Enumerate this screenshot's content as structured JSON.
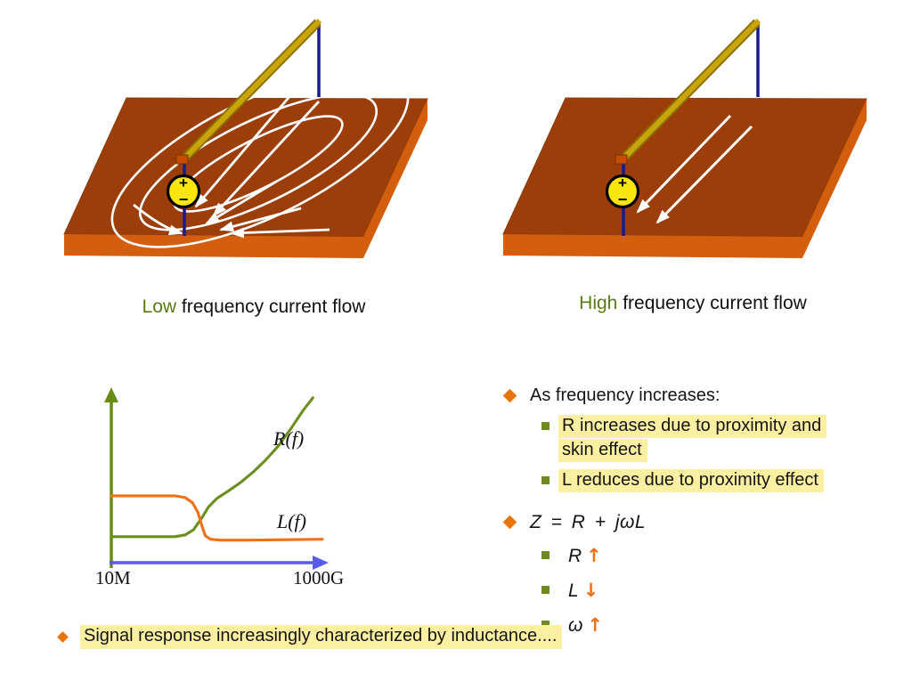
{
  "slide": {
    "captions": {
      "low": {
        "accent": "Low",
        "rest": " frequency current flow"
      },
      "high": {
        "accent": "High",
        "rest": " frequency current flow"
      }
    },
    "source_labels": {
      "plus": "+",
      "minus": "−"
    },
    "bullets": {
      "freq_header": "As frequency increases:",
      "r_item_line1": "R increases due to proximity and",
      "r_item_line2": "skin effect",
      "l_item": "L reduces due to proximity effect",
      "impedance_formula": "Z = R + jωL",
      "r_trend": {
        "symbol": "R",
        "arrow": "↑"
      },
      "l_trend": {
        "symbol": "L",
        "arrow": "↓"
      },
      "omega_trend": {
        "symbol": "ω",
        "arrow": "↑"
      }
    },
    "footer": "Signal response increasingly characterized by inductance...."
  },
  "chart_data": {
    "type": "line",
    "title": "",
    "xlabel": "",
    "ylabel": "",
    "x_scale": "log frequency",
    "x_tick_labels": [
      "10M",
      "1000G"
    ],
    "grid": false,
    "legend_position": "labels on curves",
    "axis_colors": {
      "x": "#5A5AEB",
      "y": "#698C14"
    },
    "series": [
      {
        "name": "R(f)",
        "color": "#6B8E1C",
        "x_norm": [
          0,
          0.3,
          0.35,
          0.39,
          0.43,
          0.46,
          0.5,
          0.55,
          0.61,
          0.67,
          0.73,
          0.79,
          0.85,
          0.91,
          0.955
        ],
        "y_norm": [
          0.15,
          0.15,
          0.16,
          0.19,
          0.26,
          0.32,
          0.37,
          0.41,
          0.46,
          0.52,
          0.59,
          0.67,
          0.77,
          0.88,
          0.95
        ]
      },
      {
        "name": "L(f)",
        "color": "#F07118",
        "x_norm": [
          0,
          0.3,
          0.35,
          0.385,
          0.41,
          0.43,
          0.445,
          0.47,
          0.52,
          0.65,
          1.0
        ],
        "y_norm": [
          0.385,
          0.385,
          0.375,
          0.345,
          0.29,
          0.21,
          0.155,
          0.135,
          0.13,
          0.13,
          0.135
        ]
      }
    ]
  },
  "colors": {
    "board_top": "#9B3E0A",
    "board_side": "#D25E0E",
    "trace_gold": "#C9A40A",
    "trace_edge": "#8A7200",
    "via_blue": "#1A1A8C",
    "source_yellow": "#FBE60C",
    "flow_arrows": "#FFFFFF",
    "caption_accent": "#587B15",
    "bullet_diamond": "#E8740E",
    "bullet_square": "#6E8C1E",
    "highlight": "#FBF0A2",
    "trend_arrow": "#ED7014"
  }
}
